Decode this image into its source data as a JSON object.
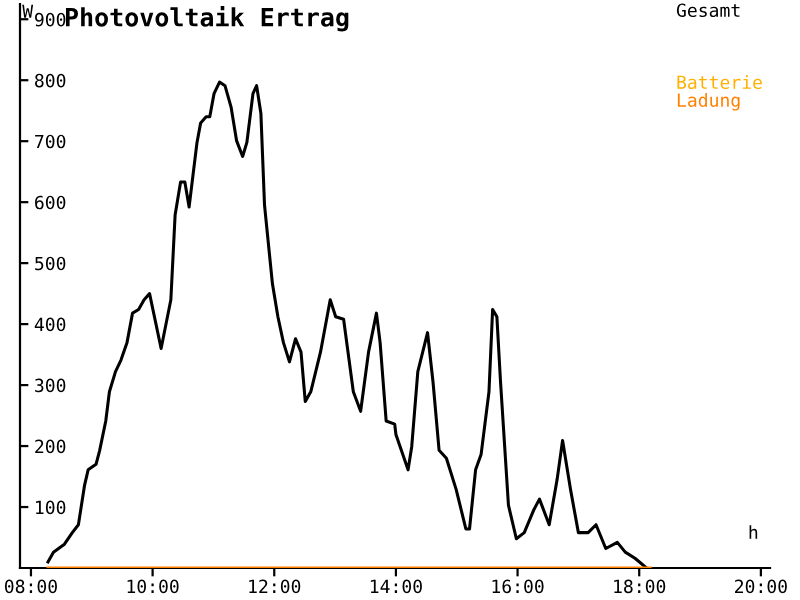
{
  "chart_data": {
    "type": "line",
    "title": "Photovoltaik Ertrag",
    "xlabel": "h",
    "ylabel": "W",
    "xlim": [
      7.82,
      20.15
    ],
    "ylim": [
      0,
      925
    ],
    "xticks": [
      {
        "value": 8,
        "label": "08:00"
      },
      {
        "value": 10,
        "label": "10:00"
      },
      {
        "value": 12,
        "label": "12:00"
      },
      {
        "value": 14,
        "label": "14:00"
      },
      {
        "value": 16,
        "label": "16:00"
      },
      {
        "value": 18,
        "label": "18:00"
      },
      {
        "value": 20,
        "label": "20:00"
      }
    ],
    "yticks": [
      100,
      200,
      300,
      400,
      500,
      600,
      700,
      800,
      900
    ],
    "grid": false,
    "legend": "top right",
    "marker": "none",
    "line_style": "solid",
    "series": [
      {
        "name": "Gesamt",
        "color": "#000000",
        "x": [
          8.28,
          8.37,
          8.55,
          8.68,
          8.78,
          8.81,
          8.88,
          8.94,
          9.07,
          9.13,
          9.23,
          9.29,
          9.39,
          9.48,
          9.58,
          9.67,
          9.77,
          9.86,
          9.95,
          10.14,
          10.3,
          10.37,
          10.46,
          10.53,
          10.6,
          10.73,
          10.79,
          10.88,
          10.94,
          11.01,
          11.1,
          11.19,
          11.29,
          11.38,
          11.48,
          11.55,
          11.65,
          11.71,
          11.78,
          11.84,
          11.97,
          12.06,
          12.15,
          12.25,
          12.35,
          12.44,
          12.51,
          12.6,
          12.76,
          12.92,
          13.01,
          13.14,
          13.3,
          13.42,
          13.55,
          13.68,
          13.74,
          13.84,
          13.98,
          14.0,
          14.2,
          14.26,
          14.36,
          14.52,
          14.61,
          14.71,
          14.83,
          14.99,
          15.15,
          15.21,
          15.31,
          15.4,
          15.53,
          15.59,
          15.66,
          15.72,
          15.85,
          15.98,
          16.11,
          16.27,
          16.36,
          16.52,
          16.65,
          16.74,
          16.87,
          17.0,
          17.16,
          17.29,
          17.45,
          17.64,
          17.77,
          17.93,
          18.12
        ],
        "values": [
          10,
          26,
          39,
          58,
          71,
          90,
          135,
          161,
          170,
          193,
          241,
          289,
          322,
          341,
          370,
          418,
          424,
          440,
          450,
          360,
          440,
          579,
          633,
          633,
          592,
          698,
          730,
          740,
          740,
          778,
          797,
          791,
          756,
          701,
          675,
          698,
          778,
          791,
          746,
          595,
          466,
          412,
          370,
          338,
          376,
          354,
          273,
          289,
          354,
          440,
          412,
          408,
          289,
          257,
          354,
          418,
          370,
          241,
          236,
          219,
          161,
          199,
          322,
          386,
          305,
          193,
          180,
          129,
          64,
          64,
          161,
          186,
          289,
          424,
          412,
          305,
          103,
          48,
          58,
          96,
          113,
          71,
          145,
          209,
          129,
          58,
          58,
          71,
          32,
          42,
          26,
          16,
          0
        ]
      },
      {
        "name": "Batterie",
        "color": "#ffb000"
      },
      {
        "name": "Ladung",
        "color": "#ff8000",
        "x": [
          8.28,
          18.18
        ],
        "values": [
          0,
          0
        ]
      }
    ]
  }
}
